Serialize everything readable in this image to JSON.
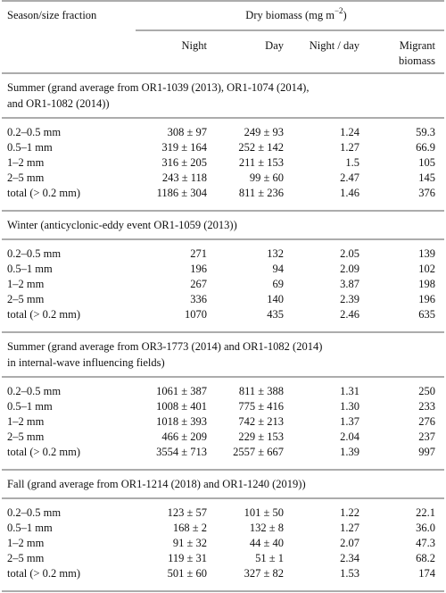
{
  "header": {
    "first": "Season/size fraction",
    "group": {
      "text": "Dry biomass (mg m",
      "sup": "−2",
      "close": ")"
    },
    "columns": [
      "Night",
      "Day",
      "Night / day",
      [
        "Migrant",
        "biomass"
      ]
    ]
  },
  "sections": [
    {
      "title": [
        "Summer (grand average from OR1-1039 (2013), OR1-1074 (2014),",
        "and OR1-1082 (2014))"
      ],
      "rows": [
        [
          "0.2–0.5 mm",
          "308 ± 97",
          "249 ± 93",
          "1.24",
          "59.3"
        ],
        [
          "0.5–1 mm",
          "319 ± 164",
          "252 ± 142",
          "1.27",
          "66.9"
        ],
        [
          "1–2 mm",
          "316 ± 205",
          "211 ± 153",
          "1.5",
          "105"
        ],
        [
          "2–5 mm",
          "243 ± 118",
          "99 ± 60",
          "2.47",
          "145"
        ],
        [
          "total (> 0.2 mm)",
          "1186 ± 304",
          "811 ± 236",
          "1.46",
          "376"
        ]
      ]
    },
    {
      "title": [
        "Winter (anticyclonic-eddy event OR1-1059 (2013))"
      ],
      "rows": [
        [
          "0.2–0.5 mm",
          "271",
          "132",
          "2.05",
          "139"
        ],
        [
          "0.5–1 mm",
          "196",
          "94",
          "2.09",
          "102"
        ],
        [
          "1–2 mm",
          "267",
          "69",
          "3.87",
          "198"
        ],
        [
          "2–5 mm",
          "336",
          "140",
          "2.39",
          "196"
        ],
        [
          "total (> 0.2 mm)",
          "1070",
          "435",
          "2.46",
          "635"
        ]
      ]
    },
    {
      "title": [
        "Summer (grand average from OR3-1773 (2014) and OR1-1082 (2014)",
        "in internal-wave influencing fields)"
      ],
      "rows": [
        [
          "0.2–0.5 mm",
          "1061 ± 387",
          "811 ± 388",
          "1.31",
          "250"
        ],
        [
          "0.5–1 mm",
          "1008 ± 401",
          "775 ± 416",
          "1.30",
          "233"
        ],
        [
          "1–2 mm",
          "1018 ± 393",
          "742 ± 213",
          "1.37",
          "276"
        ],
        [
          "2–5 mm",
          "466 ± 209",
          "229 ± 153",
          "2.04",
          "237"
        ],
        [
          "total (> 0.2 mm)",
          "3554 ± 713",
          "2557 ± 667",
          "1.39",
          "997"
        ]
      ]
    },
    {
      "title": [
        "Fall (grand average from OR1-1214 (2018) and OR1-1240 (2019))"
      ],
      "rows": [
        [
          "0.2–0.5 mm",
          "123 ± 57",
          "101 ± 50",
          "1.22",
          "22.1"
        ],
        [
          "0.5–1 mm",
          "168 ± 2",
          "132 ± 8",
          "1.27",
          "36.0"
        ],
        [
          "1–2 mm",
          "91 ± 32",
          "44 ± 40",
          "2.07",
          "47.3"
        ],
        [
          "2–5 mm",
          "119 ± 31",
          "51 ± 1",
          "2.34",
          "68.2"
        ],
        [
          "total (> 0.2 mm)",
          "501 ± 60",
          "327 ± 82",
          "1.53",
          "174"
        ]
      ]
    }
  ]
}
